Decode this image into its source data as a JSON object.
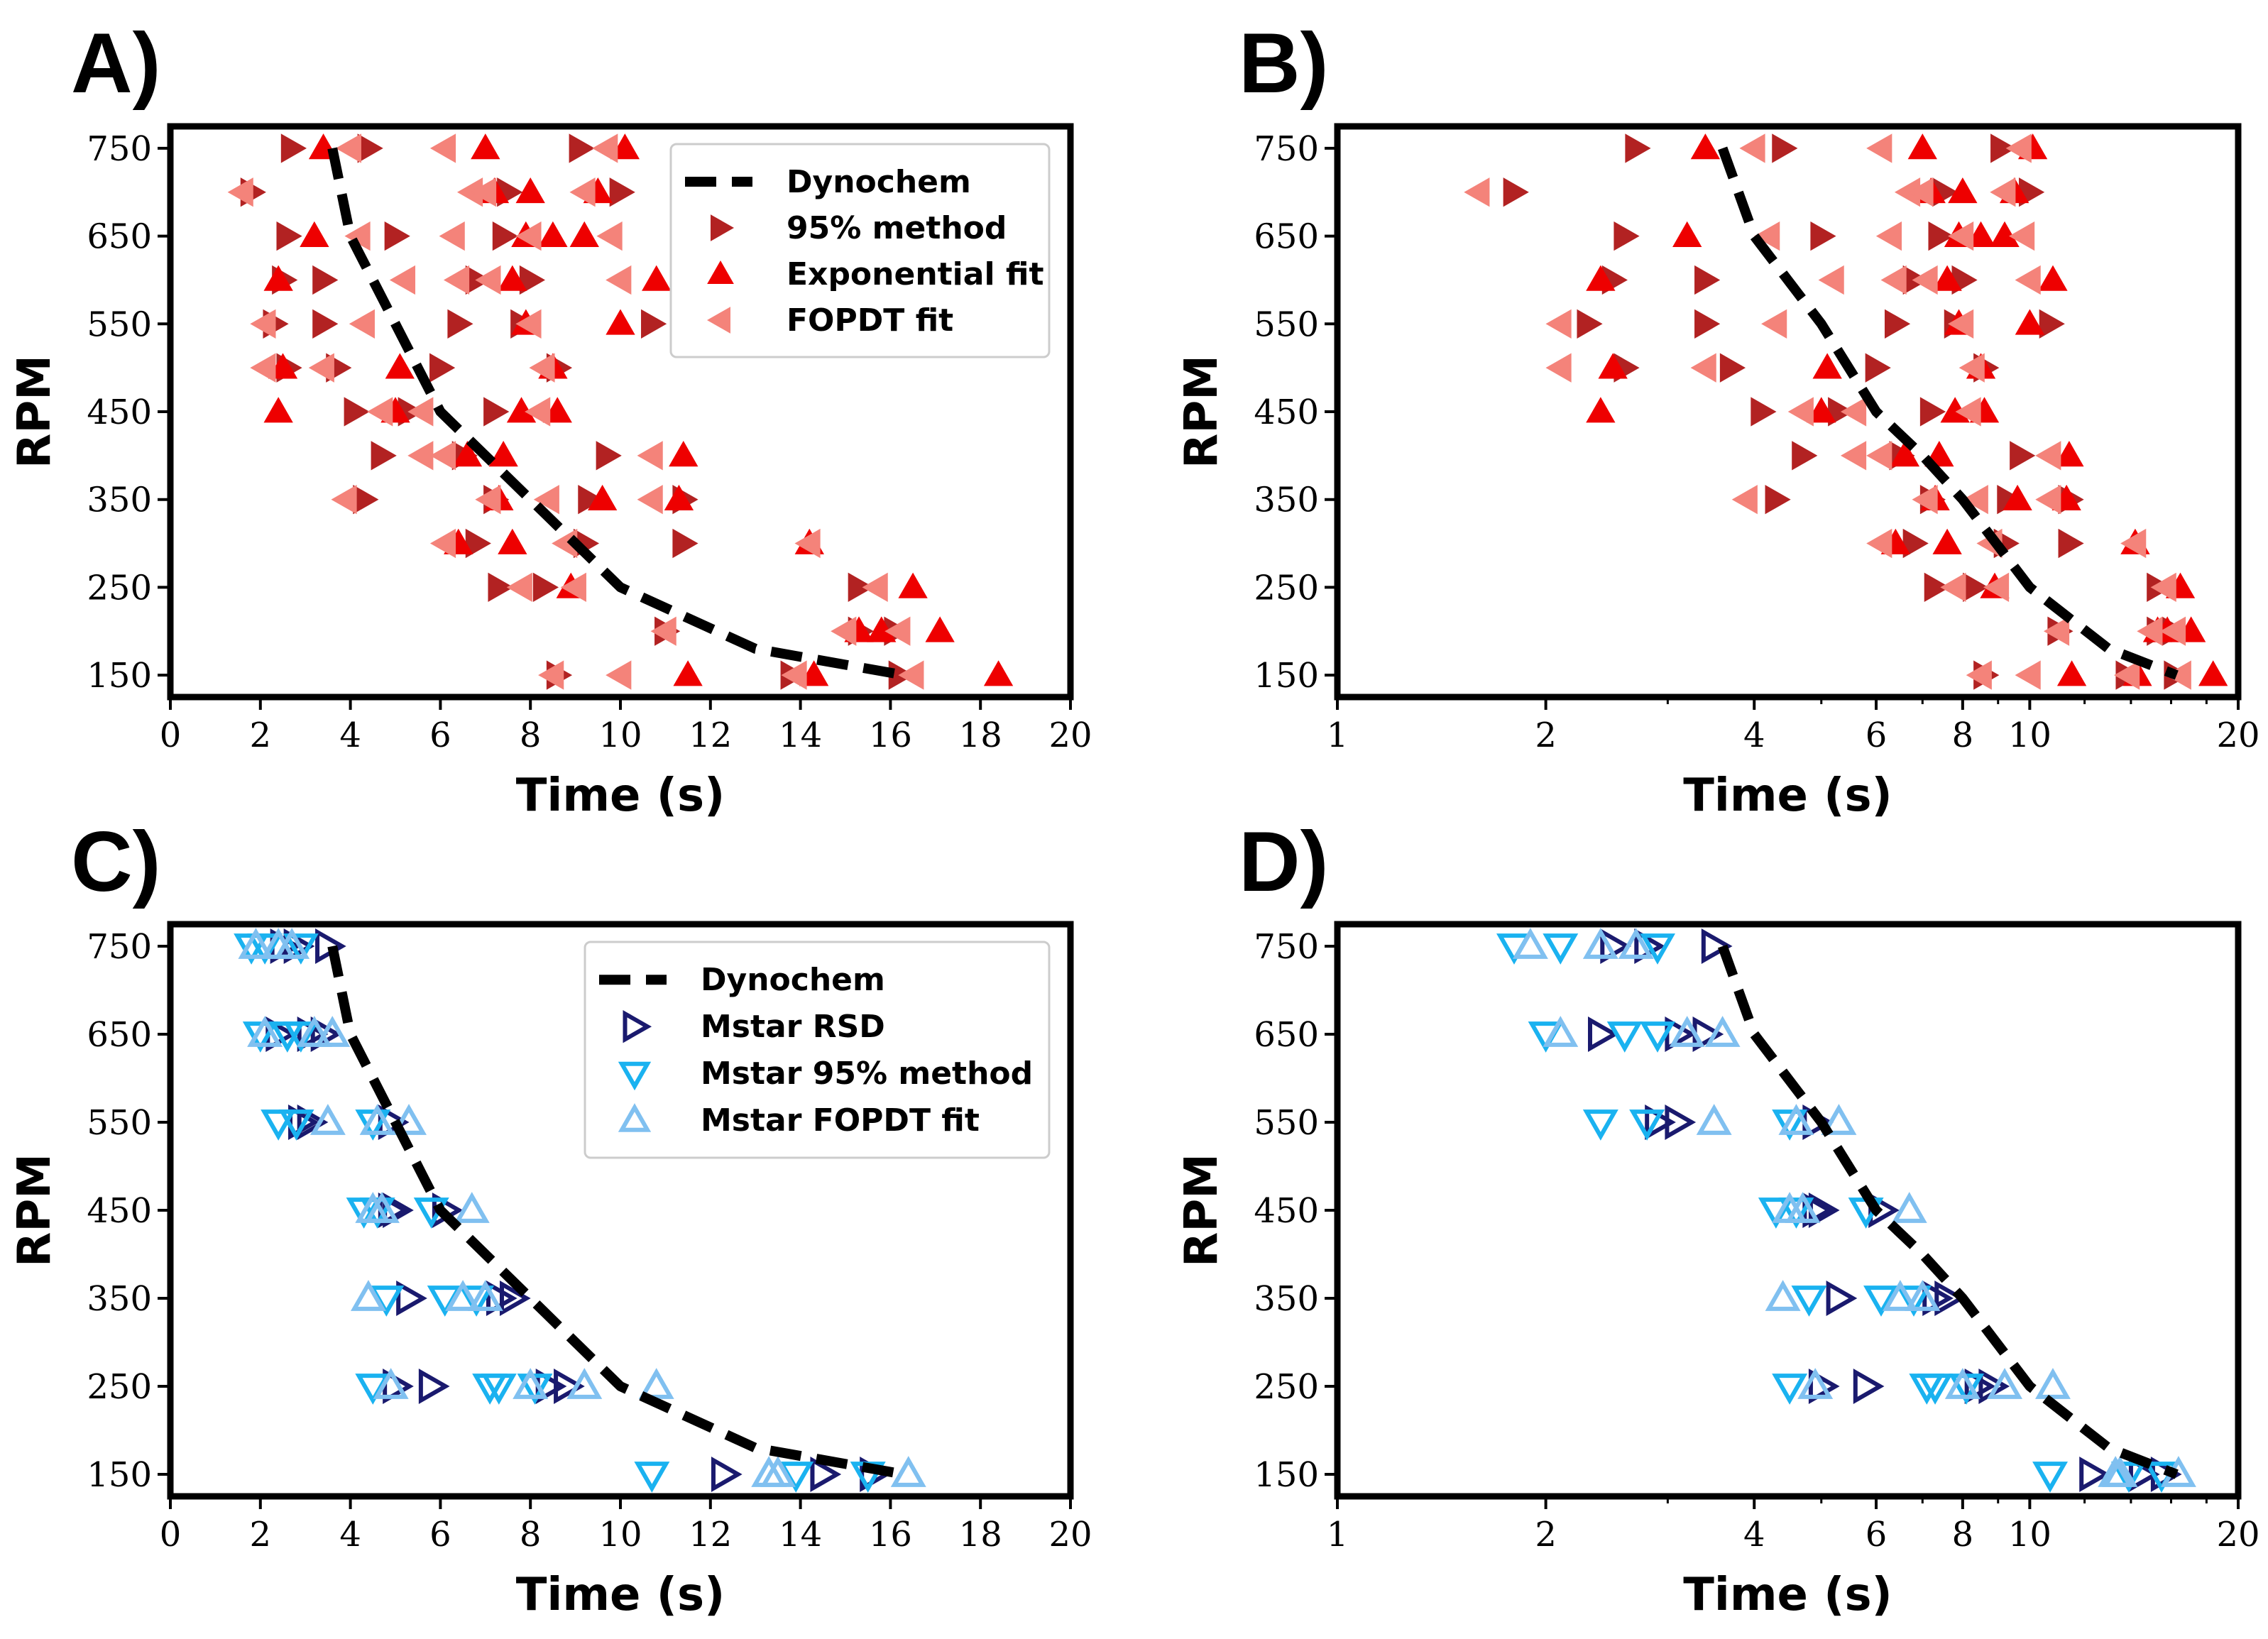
{
  "panels": [
    {
      "letter": "A)",
      "scale": "linear",
      "legend": [
        {
          "label": "Dynochem",
          "series": "dyno"
        },
        {
          "label": "95% method",
          "series": "m95"
        },
        {
          "label": "Exponential fit",
          "series": "exp"
        },
        {
          "label": "FOPDT fit",
          "series": "fopdt"
        }
      ],
      "ticks": [
        {
          "v": 0,
          "t": "0"
        },
        {
          "v": 2,
          "t": "2"
        },
        {
          "v": 4,
          "t": "4"
        },
        {
          "v": 6,
          "t": "6"
        },
        {
          "v": 8,
          "t": "8"
        },
        {
          "v": 10,
          "t": "10"
        },
        {
          "v": 12,
          "t": "12"
        },
        {
          "v": 14,
          "t": "14"
        },
        {
          "v": 16,
          "t": "16"
        },
        {
          "v": 18,
          "t": "18"
        },
        {
          "v": 20,
          "t": "20"
        }
      ]
    },
    {
      "letter": "B)",
      "scale": "log",
      "legend": [],
      "ticks": [
        {
          "v": 1,
          "t": "1"
        },
        {
          "v": 2,
          "t": "2"
        },
        {
          "v": 4,
          "t": "4"
        },
        {
          "v": 6,
          "t": "6"
        },
        {
          "v": 8,
          "t": "8"
        },
        {
          "v": 10,
          "t": "10"
        },
        {
          "v": 20,
          "t": "20"
        }
      ]
    },
    {
      "letter": "C)",
      "scale": "linear",
      "legend": [
        {
          "label": "Dynochem",
          "series": "dyno"
        },
        {
          "label": "Mstar RSD",
          "series": "rsd"
        },
        {
          "label": "Mstar 95% method",
          "series": "ms95"
        },
        {
          "label": "Mstar FOPDT fit",
          "series": "msfopdt"
        }
      ],
      "ticks": [
        {
          "v": 0,
          "t": "0"
        },
        {
          "v": 2,
          "t": "2"
        },
        {
          "v": 4,
          "t": "4"
        },
        {
          "v": 6,
          "t": "6"
        },
        {
          "v": 8,
          "t": "8"
        },
        {
          "v": 10,
          "t": "10"
        },
        {
          "v": 12,
          "t": "12"
        },
        {
          "v": 14,
          "t": "14"
        },
        {
          "v": 16,
          "t": "16"
        },
        {
          "v": 18,
          "t": "18"
        },
        {
          "v": 20,
          "t": "20"
        }
      ]
    },
    {
      "letter": "D)",
      "scale": "log",
      "legend": [],
      "ticks": [
        {
          "v": 1,
          "t": "1"
        },
        {
          "v": 2,
          "t": "2"
        },
        {
          "v": 4,
          "t": "4"
        },
        {
          "v": 6,
          "t": "6"
        },
        {
          "v": 8,
          "t": "8"
        },
        {
          "v": 10,
          "t": "10"
        },
        {
          "v": 20,
          "t": "20"
        }
      ]
    }
  ],
  "chart_data": [
    {
      "type": "scatter",
      "panel": "A",
      "xlabel": "Time (s)",
      "ylabel": "RPM",
      "xscale": "linear",
      "xlim": [
        0,
        20
      ],
      "ylim": [
        125,
        775
      ],
      "yticks": [
        150,
        250,
        350,
        450,
        550,
        650,
        750
      ],
      "series": [
        {
          "name": "Dynochem",
          "key": "dyno",
          "style": "dashed",
          "color": "#000000",
          "x": [
            3.6,
            4.0,
            5.0,
            6.0,
            7.0,
            8.0,
            10.0,
            13.0,
            16.3
          ],
          "y": [
            750,
            650,
            550,
            450,
            400,
            350,
            250,
            180,
            150
          ]
        },
        {
          "name": "95% method",
          "key": "m95",
          "marker": "triangle-right",
          "color": "#b22222",
          "points": [
            [
              2.7,
              750
            ],
            [
              4.4,
              750
            ],
            [
              9.1,
              750
            ],
            [
              1.8,
              700
            ],
            [
              7.5,
              700
            ],
            [
              10.0,
              700
            ],
            [
              2.6,
              650
            ],
            [
              5.0,
              650
            ],
            [
              7.4,
              650
            ],
            [
              2.5,
              600
            ],
            [
              3.4,
              600
            ],
            [
              6.8,
              600
            ],
            [
              8.0,
              600
            ],
            [
              2.3,
              550
            ],
            [
              3.4,
              550
            ],
            [
              6.4,
              550
            ],
            [
              7.8,
              550
            ],
            [
              10.7,
              550
            ],
            [
              2.6,
              500
            ],
            [
              3.7,
              500
            ],
            [
              6.0,
              500
            ],
            [
              8.6,
              500
            ],
            [
              4.1,
              450
            ],
            [
              5.3,
              450
            ],
            [
              7.2,
              450
            ],
            [
              4.7,
              400
            ],
            [
              6.5,
              400
            ],
            [
              9.7,
              400
            ],
            [
              4.3,
              350
            ],
            [
              7.2,
              350
            ],
            [
              9.3,
              350
            ],
            [
              11.4,
              350
            ],
            [
              6.8,
              300
            ],
            [
              9.2,
              300
            ],
            [
              11.4,
              300
            ],
            [
              7.3,
              250
            ],
            [
              8.3,
              250
            ],
            [
              15.3,
              250
            ],
            [
              11.0,
              200
            ],
            [
              15.3,
              200
            ],
            [
              16.1,
              200
            ],
            [
              8.6,
              150
            ],
            [
              13.8,
              150
            ],
            [
              16.2,
              150
            ]
          ]
        },
        {
          "name": "Exponential fit",
          "key": "exp",
          "marker": "triangle-up",
          "color": "#ee0000",
          "points": [
            [
              3.4,
              750
            ],
            [
              7.0,
              750
            ],
            [
              10.1,
              750
            ],
            [
              7.2,
              700
            ],
            [
              8.0,
              700
            ],
            [
              9.5,
              700
            ],
            [
              3.2,
              650
            ],
            [
              7.9,
              650
            ],
            [
              8.5,
              650
            ],
            [
              9.2,
              650
            ],
            [
              2.4,
              600
            ],
            [
              7.6,
              600
            ],
            [
              10.8,
              600
            ],
            [
              7.9,
              550
            ],
            [
              10.0,
              550
            ],
            [
              2.5,
              500
            ],
            [
              5.1,
              500
            ],
            [
              8.5,
              500
            ],
            [
              2.4,
              450
            ],
            [
              5.0,
              450
            ],
            [
              7.8,
              450
            ],
            [
              8.6,
              450
            ],
            [
              6.6,
              400
            ],
            [
              7.4,
              400
            ],
            [
              11.4,
              400
            ],
            [
              7.3,
              350
            ],
            [
              9.6,
              350
            ],
            [
              11.3,
              350
            ],
            [
              7.6,
              300
            ],
            [
              6.4,
              300
            ],
            [
              14.2,
              300
            ],
            [
              8.9,
              250
            ],
            [
              16.5,
              250
            ],
            [
              15.8,
              200
            ],
            [
              17.1,
              200
            ],
            [
              15.3,
              200
            ],
            [
              11.5,
              150
            ],
            [
              14.3,
              150
            ],
            [
              18.4,
              150
            ]
          ]
        },
        {
          "name": "FOPDT fit",
          "key": "fopdt",
          "marker": "triangle-left",
          "color": "#f4837a",
          "points": [
            [
              1.6,
              700
            ],
            [
              4.0,
              750
            ],
            [
              6.1,
              750
            ],
            [
              9.7,
              750
            ],
            [
              6.7,
              700
            ],
            [
              7.0,
              700
            ],
            [
              9.2,
              700
            ],
            [
              4.2,
              650
            ],
            [
              6.3,
              650
            ],
            [
              8.0,
              650
            ],
            [
              9.8,
              650
            ],
            [
              6.4,
              600
            ],
            [
              7.1,
              600
            ],
            [
              5.2,
              600
            ],
            [
              10.0,
              600
            ],
            [
              2.1,
              550
            ],
            [
              4.3,
              550
            ],
            [
              8.0,
              550
            ],
            [
              2.1,
              500
            ],
            [
              3.4,
              500
            ],
            [
              8.3,
              500
            ],
            [
              4.7,
              450
            ],
            [
              5.6,
              450
            ],
            [
              8.2,
              450
            ],
            [
              5.6,
              400
            ],
            [
              6.1,
              400
            ],
            [
              10.7,
              400
            ],
            [
              3.9,
              350
            ],
            [
              7.1,
              350
            ],
            [
              8.4,
              350
            ],
            [
              10.7,
              350
            ],
            [
              8.8,
              300
            ],
            [
              6.1,
              300
            ],
            [
              14.2,
              300
            ],
            [
              7.8,
              250
            ],
            [
              9.0,
              250
            ],
            [
              15.7,
              250
            ],
            [
              11.0,
              200
            ],
            [
              16.2,
              200
            ],
            [
              15.0,
              200
            ],
            [
              10.0,
              150
            ],
            [
              8.5,
              150
            ],
            [
              13.9,
              150
            ],
            [
              16.5,
              150
            ]
          ]
        }
      ]
    },
    {
      "type": "scatter",
      "panel": "B",
      "xlabel": "Time (s)",
      "ylabel": "RPM",
      "xscale": "log",
      "xlim": [
        1,
        20
      ],
      "ylim": [
        125,
        775
      ],
      "yticks": [
        150,
        250,
        350,
        450,
        550,
        650,
        750
      ],
      "same_data_as": "A"
    },
    {
      "type": "scatter",
      "panel": "C",
      "xlabel": "Time (s)",
      "ylabel": "RPM",
      "xscale": "linear",
      "xlim": [
        0,
        20
      ],
      "ylim": [
        125,
        775
      ],
      "yticks": [
        150,
        250,
        350,
        450,
        550,
        650,
        750
      ],
      "series": [
        {
          "name": "Dynochem",
          "key": "dyno",
          "style": "dashed",
          "color": "#000000",
          "x": [
            3.6,
            4.0,
            5.0,
            6.0,
            7.0,
            8.0,
            10.0,
            13.0,
            16.3
          ],
          "y": [
            750,
            650,
            550,
            450,
            400,
            350,
            250,
            180,
            150
          ]
        },
        {
          "name": "Mstar RSD",
          "key": "rsd",
          "marker": "triangle-right-open",
          "color": "#1a1a6e",
          "points": [
            [
              2.5,
              750
            ],
            [
              2.8,
              750
            ],
            [
              3.5,
              750
            ],
            [
              2.4,
              650
            ],
            [
              3.1,
              650
            ],
            [
              3.4,
              650
            ],
            [
              2.9,
              550
            ],
            [
              3.1,
              550
            ],
            [
              4.9,
              550
            ],
            [
              4.9,
              450
            ],
            [
              5.0,
              450
            ],
            [
              6.1,
              450
            ],
            [
              5.3,
              350
            ],
            [
              7.3,
              350
            ],
            [
              7.6,
              350
            ],
            [
              5.0,
              250
            ],
            [
              5.8,
              250
            ],
            [
              8.4,
              250
            ],
            [
              8.8,
              250
            ],
            [
              12.3,
              150
            ],
            [
              14.5,
              150
            ],
            [
              15.6,
              150
            ]
          ]
        },
        {
          "name": "Mstar 95% method",
          "key": "ms95",
          "marker": "triangle-down-open",
          "color": "#1ab2f0",
          "points": [
            [
              1.8,
              750
            ],
            [
              2.1,
              750
            ],
            [
              2.9,
              750
            ],
            [
              2.0,
              650
            ],
            [
              2.6,
              650
            ],
            [
              2.9,
              650
            ],
            [
              2.4,
              550
            ],
            [
              2.8,
              550
            ],
            [
              4.5,
              550
            ],
            [
              4.3,
              450
            ],
            [
              4.6,
              450
            ],
            [
              5.8,
              450
            ],
            [
              4.8,
              350
            ],
            [
              6.1,
              350
            ],
            [
              6.8,
              350
            ],
            [
              4.5,
              250
            ],
            [
              7.1,
              250
            ],
            [
              7.3,
              250
            ],
            [
              8.1,
              250
            ],
            [
              10.7,
              150
            ],
            [
              13.9,
              150
            ],
            [
              15.5,
              150
            ]
          ]
        },
        {
          "name": "Mstar FOPDT fit",
          "key": "msfopdt",
          "marker": "triangle-up-open",
          "color": "#80c0f0",
          "points": [
            [
              1.9,
              750
            ],
            [
              2.4,
              750
            ],
            [
              2.7,
              750
            ],
            [
              2.1,
              650
            ],
            [
              3.2,
              650
            ],
            [
              3.6,
              650
            ],
            [
              3.5,
              550
            ],
            [
              5.3,
              550
            ],
            [
              4.6,
              550
            ],
            [
              4.5,
              450
            ],
            [
              4.7,
              450
            ],
            [
              6.7,
              450
            ],
            [
              4.4,
              350
            ],
            [
              6.5,
              350
            ],
            [
              7.0,
              350
            ],
            [
              4.9,
              250
            ],
            [
              8.0,
              250
            ],
            [
              9.2,
              250
            ],
            [
              10.8,
              250
            ],
            [
              13.3,
              150
            ],
            [
              13.5,
              150
            ],
            [
              16.4,
              150
            ]
          ]
        }
      ]
    },
    {
      "type": "scatter",
      "panel": "D",
      "xlabel": "Time (s)",
      "ylabel": "RPM",
      "xscale": "log",
      "xlim": [
        1,
        20
      ],
      "ylim": [
        125,
        775
      ],
      "yticks": [
        150,
        250,
        350,
        450,
        550,
        650,
        750
      ],
      "same_data_as": "C"
    }
  ]
}
